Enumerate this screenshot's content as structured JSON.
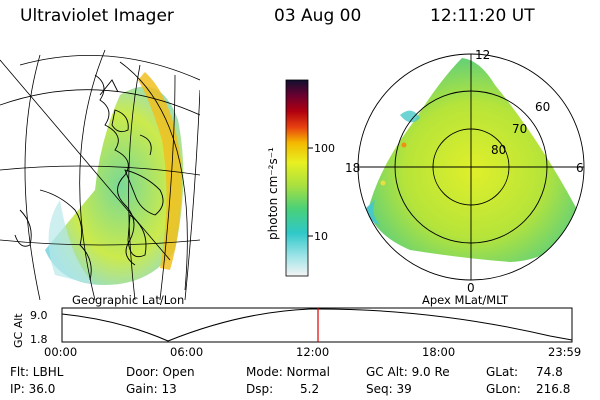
{
  "header": {
    "instrument": "Ultraviolet Imager",
    "date": "03 Aug 00",
    "time": "12:11:20 UT"
  },
  "colorbar": {
    "unit_label": "photon cm⁻²s⁻¹",
    "tick_100": "100",
    "tick_10": "10"
  },
  "panels": {
    "left_label": "Geographic Lat/Lon",
    "right_label": "Apex MLat/MLT"
  },
  "polar_plot": {
    "mlt_12": "12",
    "mlt_18": "18",
    "mlt_6": "6",
    "mlt_0": "0",
    "mlat_60": "60",
    "mlat_70": "70",
    "mlat_80": "80"
  },
  "altitude_plot": {
    "ylabel": "GC Alt",
    "ytick_top": "9.0",
    "ytick_bottom": "1.8",
    "xticks": [
      "00:00",
      "06:00",
      "12:00",
      "18:00",
      "23:59"
    ]
  },
  "status": {
    "filter": "Flt: LBHL",
    "ip": "IP: 36.0",
    "door": "Door: Open",
    "gain": "Gain: 13",
    "mode": "Mode: Normal",
    "dsp_label": "Dsp:",
    "dsp_value": "5.2",
    "gc_alt": "GC Alt: 9.0 Re",
    "seq": "Seq: 39",
    "glat": "GLat:",
    "glat_value": "74.8",
    "glon": "GLon:",
    "glon_value": "216.8"
  },
  "colors": {
    "current_time_marker": "#e00000"
  }
}
